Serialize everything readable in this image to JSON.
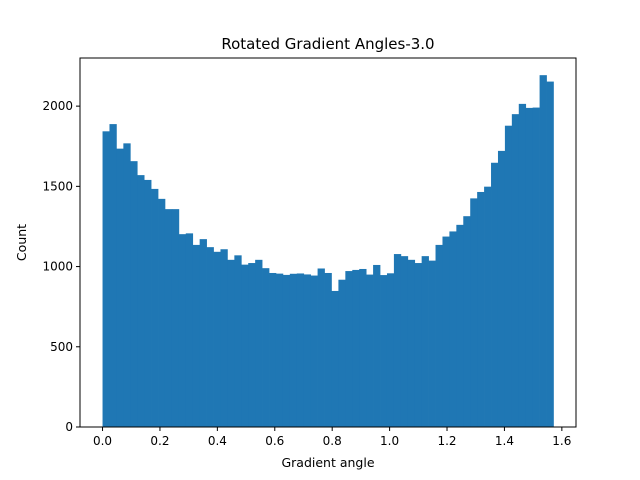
{
  "chart_data": {
    "type": "bar",
    "title": "Rotated Gradient Angles-3.0",
    "xlabel": "Gradient angle",
    "ylabel": "Count",
    "xlim": [
      -0.0785,
      1.6493
    ],
    "ylim": [
      0,
      2300
    ],
    "xticks": [
      0.0,
      0.2,
      0.4,
      0.6,
      0.8,
      1.0,
      1.2,
      1.4,
      1.6
    ],
    "xtick_labels": [
      "0.0",
      "0.2",
      "0.4",
      "0.6",
      "0.8",
      "1.0",
      "1.2",
      "1.4",
      "1.6"
    ],
    "yticks": [
      0,
      500,
      1000,
      1500,
      2000
    ],
    "ytick_labels": [
      "0",
      "500",
      "1000",
      "1500",
      "2000"
    ],
    "bin_range": [
      0,
      1.5708
    ],
    "values": [
      1843,
      1888,
      1735,
      1768,
      1657,
      1570,
      1540,
      1484,
      1422,
      1358,
      1358,
      1202,
      1207,
      1135,
      1171,
      1121,
      1092,
      1108,
      1042,
      1070,
      1012,
      1022,
      1042,
      990,
      960,
      956,
      948,
      955,
      957,
      951,
      944,
      988,
      960,
      848,
      918,
      972,
      979,
      985,
      950,
      1010,
      947,
      958,
      1078,
      1065,
      1042,
      1022,
      1065,
      1037,
      1135,
      1187,
      1219,
      1260,
      1314,
      1425,
      1465,
      1498,
      1647,
      1721,
      1878,
      1950,
      2014,
      1989,
      1991,
      2193,
      2153
    ],
    "color": "#1f77b4",
    "grid": false,
    "legend": "none"
  }
}
